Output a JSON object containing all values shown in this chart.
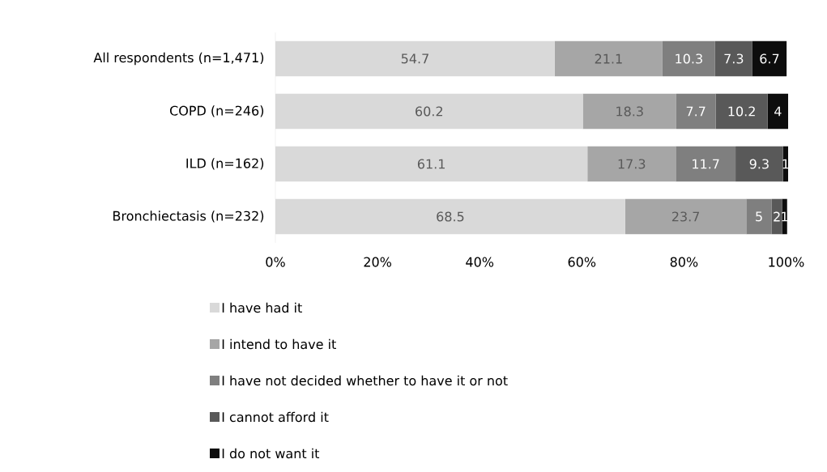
{
  "chart_data": {
    "type": "bar",
    "orientation": "horizontal",
    "stacked": true,
    "data_labels": true,
    "legend": "bottom",
    "grid": false,
    "categories": [
      "All respondents (n=1,471)",
      "COPD (n=246)",
      "ILD (n=162)",
      "Bronchiectasis (n=232)"
    ],
    "xlim": [
      0,
      100.4
    ],
    "xticks": [
      {
        "value": 0,
        "label": "0%"
      },
      {
        "value": 20,
        "label": "20%"
      },
      {
        "value": 40,
        "label": "40%"
      },
      {
        "value": 60,
        "label": "60%"
      },
      {
        "value": 80,
        "label": "80%"
      },
      {
        "value": 100,
        "label": "100%"
      }
    ],
    "series": [
      {
        "name": "I have had it",
        "color": "#d9d9d9",
        "values": [
          54.7,
          60.2,
          61.1,
          68.5
        ]
      },
      {
        "name": "I intend to have it",
        "color": "#a6a6a6",
        "values": [
          21.1,
          18.3,
          17.3,
          23.7
        ]
      },
      {
        "name": "I have not decided whether to have it or not",
        "color": "#7f7f7f",
        "values": [
          10.3,
          7.7,
          11.7,
          5
        ]
      },
      {
        "name": "I cannot afford it",
        "color": "#595959",
        "values": [
          7.3,
          10.2,
          9.3,
          2
        ]
      },
      {
        "name": "I do not want it",
        "color": "#0d0d0d",
        "values": [
          6.7,
          4,
          1,
          1
        ]
      }
    ]
  }
}
